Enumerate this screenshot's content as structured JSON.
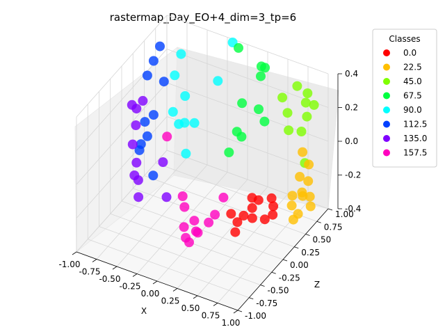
{
  "chart_data": {
    "type": "scatter3d",
    "title": "rastermap_Day_EO+4_dim=3_tp=6",
    "xlabel": "X",
    "ylabel": "",
    "zlabel": "Z",
    "xlim": [
      -1.0,
      1.0
    ],
    "ylim": [
      -0.5,
      0.5
    ],
    "zlim": [
      -1.0,
      1.0
    ],
    "xticks": [
      "-1.00",
      "-0.75",
      "-0.50",
      "-0.25",
      "0.00",
      "0.25",
      "0.50",
      "0.75",
      "1.00"
    ],
    "yticks": [
      "0.4",
      "0.2",
      "0.0",
      "-0.2",
      "-0.4"
    ],
    "zticks": [
      "1.00",
      "0.75",
      "0.50",
      "0.25",
      "0.00",
      "-0.25",
      "-0.50",
      "-0.75",
      "-1.00"
    ],
    "grid": true,
    "legend": {
      "title": "Classes",
      "placement": "outside-right",
      "entries": [
        {
          "label": "0.0",
          "color": "#ff0000"
        },
        {
          "label": "22.5",
          "color": "#ffbf00"
        },
        {
          "label": "45.0",
          "color": "#80ff00"
        },
        {
          "label": "67.5",
          "color": "#00ff40"
        },
        {
          "label": "90.0",
          "color": "#00ffff"
        },
        {
          "label": "112.5",
          "color": "#0040ff"
        },
        {
          "label": "135.0",
          "color": "#8000ff"
        },
        {
          "label": "157.5",
          "color": "#ff00bf"
        }
      ]
    },
    "series": [
      {
        "class": "0.0",
        "color": "#ff0000",
        "points": [
          [
            0.55,
            -0.35,
            0.55
          ],
          [
            0.6,
            -0.38,
            0.5
          ],
          [
            0.62,
            -0.42,
            0.45
          ],
          [
            0.5,
            -0.3,
            0.35
          ],
          [
            0.45,
            -0.35,
            0.3
          ],
          [
            0.48,
            -0.4,
            0.25
          ],
          [
            0.4,
            -0.38,
            0.2
          ],
          [
            0.35,
            -0.42,
            0.15
          ],
          [
            0.3,
            -0.35,
            0.1
          ],
          [
            0.55,
            -0.45,
            0.4
          ],
          [
            0.38,
            -0.45,
            0.05
          ],
          [
            0.42,
            -0.3,
            0.35
          ]
        ]
      },
      {
        "class": "22.5",
        "color": "#ffbf00",
        "points": [
          [
            0.85,
            0.0,
            0.7
          ],
          [
            0.9,
            -0.1,
            0.75
          ],
          [
            0.92,
            -0.2,
            0.7
          ],
          [
            0.88,
            -0.3,
            0.65
          ],
          [
            0.95,
            -0.38,
            0.7
          ],
          [
            0.85,
            -0.42,
            0.6
          ],
          [
            0.8,
            -0.35,
            0.55
          ],
          [
            0.9,
            -0.25,
            0.6
          ],
          [
            0.82,
            -0.45,
            0.55
          ],
          [
            0.78,
            -0.3,
            0.6
          ],
          [
            0.93,
            -0.32,
            0.72
          ],
          [
            0.86,
            -0.15,
            0.62
          ]
        ]
      },
      {
        "class": "45.0",
        "color": "#80ff00",
        "points": [
          [
            0.7,
            0.4,
            0.85
          ],
          [
            0.8,
            0.35,
            0.9
          ],
          [
            0.75,
            0.25,
            0.95
          ],
          [
            0.82,
            0.2,
            0.85
          ],
          [
            0.6,
            0.35,
            0.7
          ],
          [
            0.65,
            0.1,
            0.75
          ],
          [
            0.78,
            0.1,
            0.8
          ],
          [
            0.85,
            -0.1,
            0.75
          ],
          [
            0.72,
            0.3,
            0.6
          ],
          [
            0.88,
            0.28,
            0.9
          ]
        ]
      },
      {
        "class": "67.5",
        "color": "#00ff40",
        "points": [
          [
            0.0,
            0.55,
            0.8
          ],
          [
            0.2,
            0.4,
            0.95
          ],
          [
            0.3,
            0.45,
            0.85
          ],
          [
            0.1,
            0.2,
            0.7
          ],
          [
            0.25,
            0.15,
            0.8
          ],
          [
            0.35,
            0.1,
            0.75
          ],
          [
            0.15,
            0.0,
            0.6
          ],
          [
            0.05,
            -0.1,
            0.5
          ],
          [
            0.22,
            0.35,
            0.9
          ],
          [
            0.12,
            0.05,
            0.55
          ]
        ]
      },
      {
        "class": "90.0",
        "color": "#00ffff",
        "points": [
          [
            -0.1,
            0.55,
            0.85
          ],
          [
            -0.6,
            0.45,
            0.6
          ],
          [
            -0.65,
            0.3,
            0.55
          ],
          [
            -0.55,
            0.15,
            0.6
          ],
          [
            -0.5,
            0.0,
            0.5
          ],
          [
            -0.6,
            -0.05,
            0.55
          ],
          [
            -0.4,
            -0.15,
            0.35
          ],
          [
            -0.35,
            0.05,
            0.45
          ],
          [
            -0.7,
            0.0,
            0.6
          ],
          [
            -0.2,
            0.3,
            0.7
          ]
        ]
      },
      {
        "class": "112.5",
        "color": "#0040ff",
        "points": [
          [
            -0.75,
            0.55,
            0.4
          ],
          [
            -0.8,
            0.45,
            0.35
          ],
          [
            -0.85,
            0.35,
            0.3
          ],
          [
            -0.7,
            0.3,
            0.4
          ],
          [
            -0.8,
            0.05,
            0.35
          ],
          [
            -0.85,
            -0.1,
            0.3
          ],
          [
            -0.9,
            -0.15,
            0.25
          ],
          [
            -0.75,
            -0.35,
            0.25
          ],
          [
            -0.88,
            0.0,
            0.3
          ],
          [
            -0.92,
            -0.2,
            0.25
          ]
        ]
      },
      {
        "class": "135.0",
        "color": "#8000ff",
        "points": [
          [
            -0.85,
            0.2,
            0.2
          ],
          [
            -0.9,
            0.15,
            0.15
          ],
          [
            -0.88,
            0.05,
            0.1
          ],
          [
            -0.92,
            -0.1,
            0.1
          ],
          [
            -0.9,
            -0.25,
            0.15
          ],
          [
            -0.85,
            -0.35,
            0.1
          ],
          [
            -0.82,
            -0.45,
            0.05
          ],
          [
            -0.6,
            -0.2,
            0.2
          ],
          [
            -0.5,
            -0.4,
            0.1
          ],
          [
            -0.94,
            0.18,
            0.12
          ],
          [
            -0.87,
            -0.3,
            0.05
          ]
        ]
      },
      {
        "class": "157.5",
        "color": "#ff00bf",
        "points": [
          [
            -0.55,
            0.0,
            0.2
          ],
          [
            -0.3,
            -0.35,
            0.1
          ],
          [
            -0.25,
            -0.4,
            0.05
          ],
          [
            -0.1,
            -0.45,
            0.0
          ],
          [
            -0.05,
            -0.5,
            -0.05
          ],
          [
            0.0,
            -0.48,
            -0.1
          ],
          [
            -0.15,
            -0.55,
            -0.1
          ],
          [
            0.1,
            -0.4,
            0.1
          ],
          [
            0.05,
            -0.45,
            0.05
          ],
          [
            -0.2,
            -0.5,
            -0.05
          ],
          [
            0.15,
            -0.3,
            0.2
          ],
          [
            -0.08,
            -0.55,
            -0.15
          ]
        ]
      }
    ]
  }
}
